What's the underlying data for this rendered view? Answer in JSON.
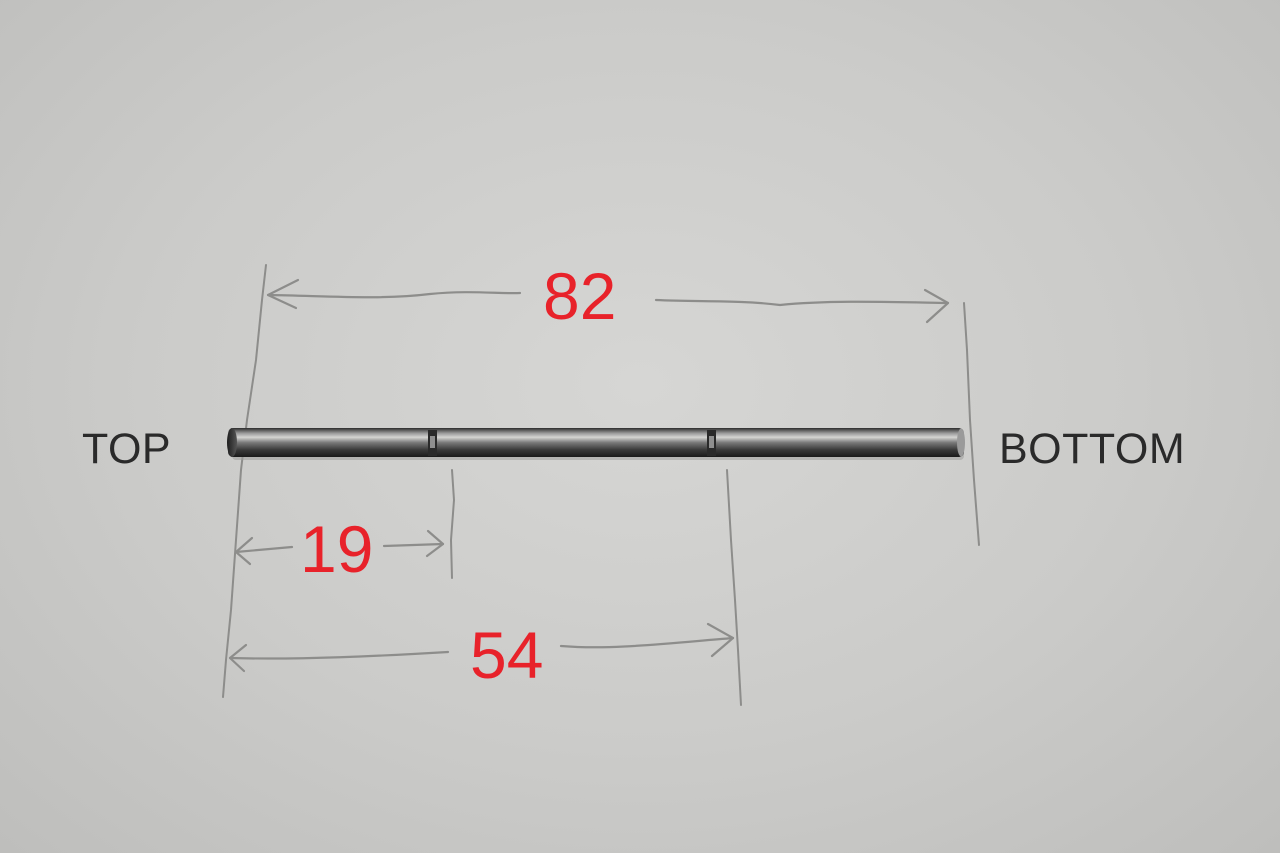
{
  "labels": {
    "top": "TOP",
    "bottom": "BOTTOM"
  },
  "dimensions": {
    "total": "82",
    "first_groove": "19",
    "second_groove": "54"
  },
  "icons": [
    "metal-rod",
    "pencil-dimension-line",
    "arrowhead"
  ],
  "colors": {
    "paper": "#cbcbc9",
    "pencil": "#8a8a88",
    "dimension_text": "#e8222a",
    "label_text": "#2a2a2a",
    "rod_steel": "#6e6e6e"
  }
}
